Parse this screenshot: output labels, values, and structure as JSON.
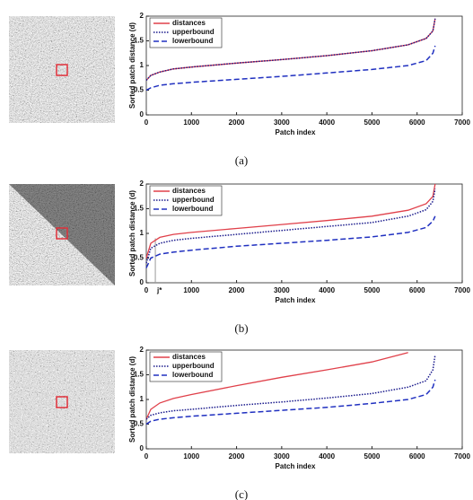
{
  "chart_data": [
    {
      "type": "line",
      "caption": "(a)",
      "xlabel": "Patch index",
      "ylabel": "Sorted patch distance (d)",
      "x": [
        0,
        100,
        300,
        600,
        1000,
        2000,
        3000,
        4000,
        5000,
        5800,
        6200,
        6350,
        6400
      ],
      "series": [
        {
          "name": "distances",
          "color": "#e0404a",
          "style": "solid",
          "values": [
            0.7,
            0.8,
            0.87,
            0.93,
            0.97,
            1.05,
            1.12,
            1.2,
            1.3,
            1.42,
            1.55,
            1.7,
            1.95
          ]
        },
        {
          "name": "upperbound",
          "color": "#1a1a8c",
          "style": "dotted",
          "values": [
            0.7,
            0.8,
            0.87,
            0.93,
            0.97,
            1.05,
            1.12,
            1.2,
            1.3,
            1.42,
            1.55,
            1.7,
            1.95
          ]
        },
        {
          "name": "lowerbound",
          "color": "#2030c0",
          "style": "dashed",
          "values": [
            0.5,
            0.55,
            0.6,
            0.63,
            0.66,
            0.72,
            0.78,
            0.85,
            0.92,
            1.0,
            1.1,
            1.25,
            1.4
          ]
        }
      ],
      "xlim": [
        0,
        7000
      ],
      "xticks": [
        0,
        1000,
        2000,
        3000,
        4000,
        5000,
        6000,
        7000
      ],
      "ylim": [
        0,
        2
      ],
      "yticks": [
        0,
        0.5,
        1,
        1.5,
        2
      ],
      "legend": "top-left"
    },
    {
      "type": "line",
      "caption": "(b)",
      "xlabel": "Patch index",
      "ylabel": "Sorted patch distance (d)",
      "x": [
        0,
        100,
        300,
        600,
        1000,
        2000,
        3000,
        4000,
        5000,
        5800,
        6200,
        6350,
        6400
      ],
      "series": [
        {
          "name": "distances",
          "color": "#e0404a",
          "style": "solid",
          "values": [
            0.5,
            0.8,
            0.92,
            0.98,
            1.02,
            1.1,
            1.18,
            1.26,
            1.35,
            1.47,
            1.6,
            1.75,
            2.0
          ]
        },
        {
          "name": "upperbound",
          "color": "#1a1a8c",
          "style": "dotted",
          "values": [
            0.4,
            0.7,
            0.8,
            0.86,
            0.9,
            0.98,
            1.06,
            1.14,
            1.22,
            1.35,
            1.48,
            1.65,
            1.9
          ]
        },
        {
          "name": "lowerbound",
          "color": "#2030c0",
          "style": "dashed",
          "values": [
            0.3,
            0.5,
            0.58,
            0.62,
            0.66,
            0.74,
            0.8,
            0.86,
            0.93,
            1.02,
            1.12,
            1.25,
            1.35
          ]
        }
      ],
      "annotations": [
        {
          "text": "j*",
          "x": 200
        }
      ],
      "xlim": [
        0,
        7000
      ],
      "xticks": [
        0,
        1000,
        2000,
        3000,
        4000,
        5000,
        6000,
        7000
      ],
      "ylim": [
        0,
        2
      ],
      "yticks": [
        0,
        0.5,
        1,
        1.5,
        2
      ],
      "legend": "top-left"
    },
    {
      "type": "line",
      "caption": "(c)",
      "xlabel": "Patch index",
      "ylabel": "Sorted patch distance (d)",
      "x": [
        0,
        100,
        300,
        600,
        1000,
        2000,
        3000,
        4000,
        5000,
        5800,
        6200,
        6350,
        6400
      ],
      "series": [
        {
          "name": "distances",
          "color": "#e0404a",
          "style": "solid",
          "values": [
            0.6,
            0.8,
            0.93,
            1.02,
            1.1,
            1.28,
            1.45,
            1.6,
            1.76,
            1.95,
            null,
            null,
            null
          ]
        },
        {
          "name": "upperbound",
          "color": "#1a1a8c",
          "style": "dotted",
          "values": [
            0.6,
            0.68,
            0.73,
            0.77,
            0.8,
            0.88,
            0.95,
            1.03,
            1.12,
            1.25,
            1.38,
            1.6,
            1.9
          ]
        },
        {
          "name": "lowerbound",
          "color": "#2030c0",
          "style": "dashed",
          "values": [
            0.5,
            0.56,
            0.6,
            0.63,
            0.66,
            0.72,
            0.78,
            0.84,
            0.92,
            1.0,
            1.1,
            1.25,
            1.4
          ]
        }
      ],
      "xlim": [
        0,
        7000
      ],
      "xticks": [
        0,
        1000,
        2000,
        3000,
        4000,
        5000,
        6000,
        7000
      ],
      "ylim": [
        0,
        2
      ],
      "yticks": [
        0,
        0.5,
        1,
        1.5,
        2
      ],
      "legend": "top-left"
    }
  ]
}
